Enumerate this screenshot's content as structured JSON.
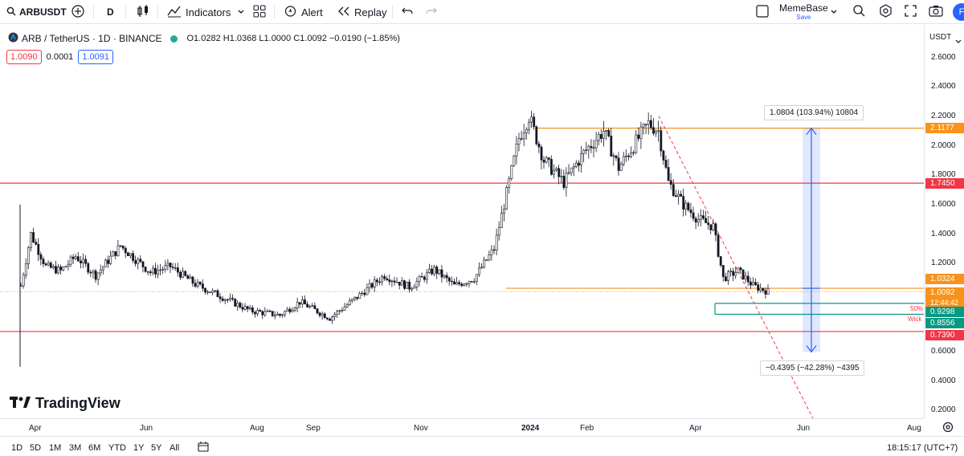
{
  "toolbar": {
    "symbol": "ARBUSDT",
    "interval": "D",
    "indicators_label": "Indicators",
    "alert_label": "Alert",
    "replay_label": "Replay",
    "layout_name": "MemeBase",
    "layout_sub": "Save",
    "avatar_letter": "F"
  },
  "legend": {
    "title": "ARB / TetherUS · 1D · BINANCE",
    "ohlc": "O1.0282 H1.0368 L1.0000 C1.0092 −0.0190 (−1.85%)",
    "bid": "1.0090",
    "spread": "0.0001",
    "ask": "1.0091"
  },
  "price_axis": {
    "currency": "USDT",
    "labels": [
      "2.6000",
      "2.4000",
      "2.2000",
      "2.0000",
      "1.8000",
      "1.6000",
      "1.4000",
      "1.2000",
      "0.6000",
      "0.4000",
      "0.2000"
    ],
    "tags": [
      {
        "text": "2.1177",
        "color": "#f7931a"
      },
      {
        "text": "1.7450",
        "color": "#f23645"
      },
      {
        "text": "1.0324",
        "color": "#f7931a"
      },
      {
        "text": "1.0092",
        "color": "#f7931a"
      },
      {
        "text": "12:44:42",
        "color": "#f7931a"
      },
      {
        "text": "0.9298",
        "color": "#089981"
      },
      {
        "text": "0.8556",
        "color": "#089981"
      },
      {
        "text": "0.7390",
        "color": "#f23645"
      }
    ]
  },
  "time_axis": [
    "Apr",
    "Jun",
    "Aug",
    "Sep",
    "Nov",
    "2024",
    "Feb",
    "Apr",
    "Jun",
    "Aug"
  ],
  "annotations": {
    "upper": "1.0804 (103.94%) 10804",
    "lower": "−0.4395 (−42.28%) −4395",
    "fifty": "50%",
    "wick": "Wick"
  },
  "logo_text": "TradingView",
  "ranges": [
    "1D",
    "5D",
    "1M",
    "3M",
    "6M",
    "YTD",
    "1Y",
    "5Y",
    "All"
  ],
  "clock": "18:15:17 (UTC+7)",
  "colors": {
    "up": "#131722",
    "orange": "#f7931a",
    "red": "#f23645",
    "green": "#089981",
    "blue": "#2962ff"
  },
  "chart_data": {
    "type": "candlestick",
    "symbol": "ARB / TetherUS",
    "interval": "1D",
    "ylim": [
      0.2,
      2.6
    ],
    "horizontal_levels": [
      2.1177,
      1.745,
      1.0324,
      0.9298,
      0.8556,
      0.739
    ],
    "price_path": [
      [
        0,
        1.05
      ],
      [
        4,
        1.4
      ],
      [
        10,
        1.18
      ],
      [
        16,
        1.15
      ],
      [
        22,
        1.25
      ],
      [
        30,
        1.12
      ],
      [
        40,
        1.32
      ],
      [
        52,
        1.14
      ],
      [
        60,
        1.18
      ],
      [
        70,
        1.06
      ],
      [
        80,
        0.98
      ],
      [
        92,
        0.88
      ],
      [
        104,
        0.85
      ],
      [
        112,
        0.94
      ],
      [
        124,
        0.83
      ],
      [
        134,
        0.96
      ],
      [
        146,
        1.12
      ],
      [
        156,
        1.04
      ],
      [
        166,
        1.16
      ],
      [
        174,
        1.05
      ],
      [
        182,
        1.1
      ],
      [
        190,
        1.3
      ],
      [
        196,
        1.75
      ],
      [
        200,
        2.05
      ],
      [
        204,
        2.2
      ],
      [
        210,
        1.9
      ],
      [
        218,
        1.75
      ],
      [
        226,
        1.95
      ],
      [
        234,
        2.1
      ],
      [
        240,
        1.85
      ],
      [
        246,
        2.0
      ],
      [
        252,
        2.15
      ],
      [
        256,
        2.1
      ],
      [
        260,
        1.75
      ],
      [
        266,
        1.6
      ],
      [
        272,
        1.5
      ],
      [
        278,
        1.45
      ],
      [
        282,
        1.1
      ],
      [
        288,
        1.15
      ],
      [
        294,
        1.05
      ],
      [
        300,
        1.01
      ]
    ]
  }
}
